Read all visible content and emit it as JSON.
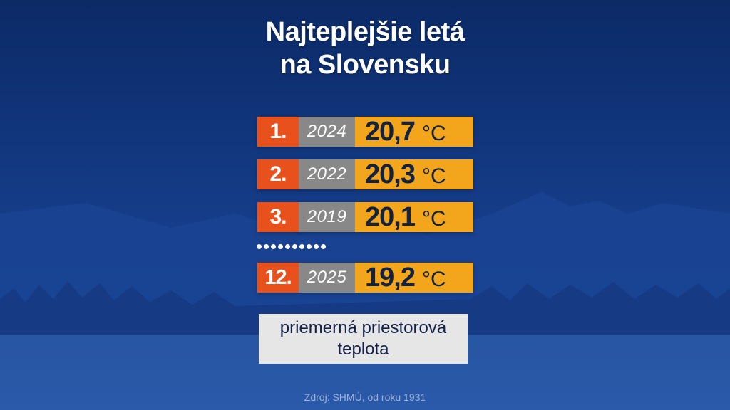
{
  "title_lines": [
    "Najteplejšie letá",
    "na Slovensku"
  ],
  "chart_data": {
    "type": "table",
    "title": "Najteplejšie letá na Slovensku",
    "unit": "°C",
    "rows": [
      {
        "rank": "1.",
        "year": "2024",
        "value": "20,7",
        "unit": "°C"
      },
      {
        "rank": "2.",
        "year": "2022",
        "value": "20,3",
        "unit": "°C"
      },
      {
        "rank": "3.",
        "year": "2019",
        "value": "20,1",
        "unit": "°C"
      },
      {
        "rank": "12.",
        "year": "2025",
        "value": "19,2",
        "unit": "°C"
      }
    ],
    "legend_lines": [
      "priemerná priestorová",
      "teplota"
    ],
    "source": "Zdroj: SHMÚ, od roku 1931"
  },
  "colors": {
    "rank_bg": "#e8501c",
    "year_bg": "#888888",
    "value_bg": "#f3a51c",
    "background": "#0e2d6b"
  }
}
